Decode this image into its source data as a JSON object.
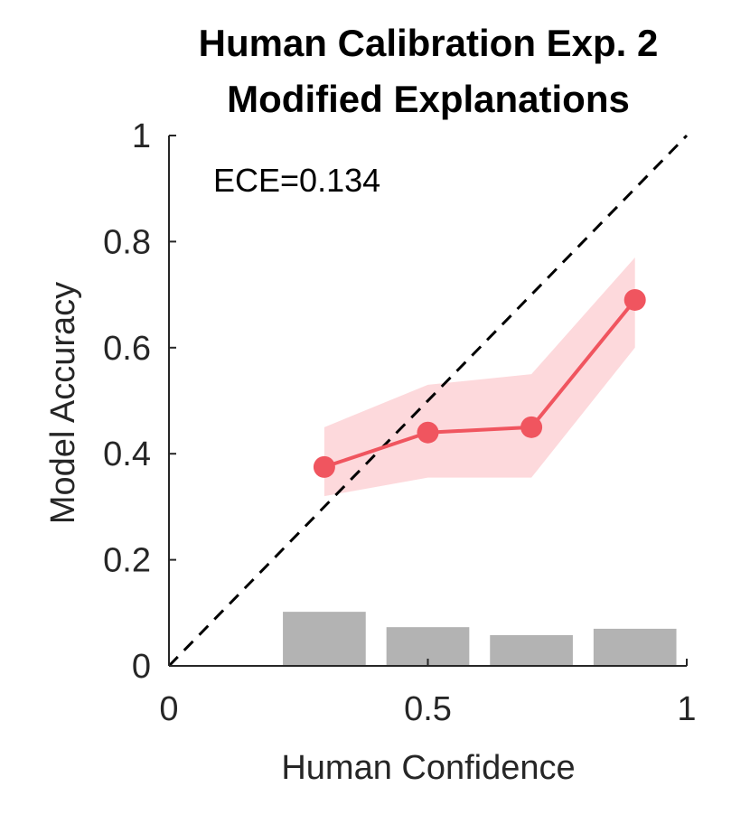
{
  "chart_data": {
    "type": "line",
    "title": [
      "Human Calibration Exp. 2",
      "Modified Explanations"
    ],
    "xlabel": "Human Confidence",
    "ylabel": "Model Accuracy",
    "xlim": [
      0,
      1
    ],
    "ylim": [
      0,
      1
    ],
    "xticks": [
      {
        "value": 0,
        "label": "0"
      },
      {
        "value": 0.5,
        "label": "0.5"
      },
      {
        "value": 1,
        "label": "1"
      }
    ],
    "yticks": [
      {
        "value": 0,
        "label": "0"
      },
      {
        "value": 0.2,
        "label": "0.2"
      },
      {
        "value": 0.4,
        "label": "0.4"
      },
      {
        "value": 0.6,
        "label": "0.6"
      },
      {
        "value": 0.8,
        "label": "0.8"
      },
      {
        "value": 1,
        "label": "1"
      }
    ],
    "annotation": "ECE=0.134",
    "grid": false,
    "reference_line": {
      "style": "dashed",
      "color": "#000000",
      "from": [
        0,
        0
      ],
      "to": [
        1,
        1
      ]
    },
    "series": [
      {
        "name": "Model Accuracy",
        "color": "#f0555f",
        "band_color": "#fdd9dc",
        "x": [
          0.3,
          0.5,
          0.7,
          0.9
        ],
        "y": [
          0.375,
          0.44,
          0.45,
          0.69
        ],
        "lower": [
          0.32,
          0.355,
          0.355,
          0.6
        ],
        "upper": [
          0.45,
          0.53,
          0.55,
          0.77
        ]
      }
    ],
    "histogram": {
      "color": "#b3b3b3",
      "bins": [
        {
          "x0": 0.22,
          "x1": 0.38,
          "value": 0.102
        },
        {
          "x0": 0.42,
          "x1": 0.58,
          "value": 0.073
        },
        {
          "x0": 0.62,
          "x1": 0.78,
          "value": 0.058
        },
        {
          "x0": 0.82,
          "x1": 0.98,
          "value": 0.07
        }
      ]
    }
  }
}
